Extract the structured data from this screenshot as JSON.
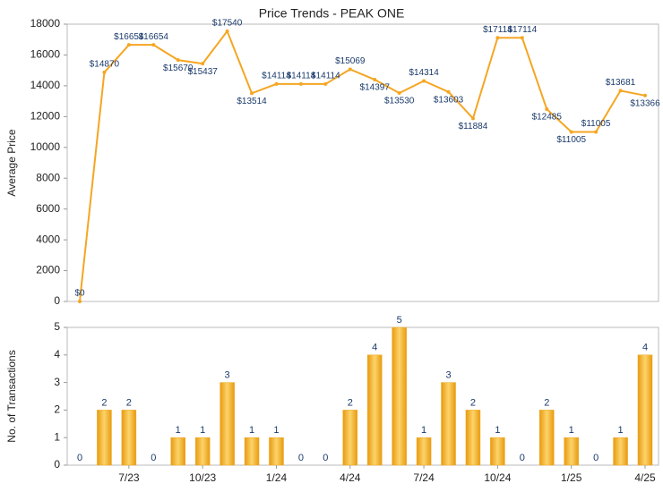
{
  "chart_data": [
    {
      "type": "line",
      "title": "Price Trends - PEAK ONE",
      "y_label": "Average Price",
      "color": "#f5a623",
      "values": [
        0,
        14870,
        16654,
        16654,
        15670,
        15437,
        17540,
        13514,
        14114,
        14114,
        14114,
        15069,
        14397,
        13530,
        14314,
        13603,
        11884,
        17114,
        17114,
        12485,
        11005,
        11005,
        13681,
        13366
      ],
      "value_labels": [
        "$0",
        "$14870",
        "$16654",
        "$16654",
        "$15670",
        "$15437",
        "$17540",
        "$13514",
        "$14114",
        "$14114",
        "$14114",
        "$15069",
        "$14397",
        "$13530",
        "$14314",
        "$13603",
        "$11884",
        "$17114",
        "$17114",
        "$12485",
        "$11005",
        "$11005",
        "$13681",
        "$13366"
      ],
      "ylim": [
        0,
        18000
      ],
      "yticks": [
        0,
        2000,
        4000,
        6000,
        8000,
        10000,
        12000,
        14000,
        16000,
        18000
      ]
    },
    {
      "type": "bar",
      "y_label": "No. of Transactions",
      "color": "#f0a81c",
      "categories": [
        null,
        null,
        "7/23",
        null,
        null,
        "10/23",
        null,
        null,
        "1/24",
        null,
        null,
        "4/24",
        null,
        null,
        "7/24",
        null,
        null,
        "10/24",
        null,
        null,
        "1/25",
        null,
        null,
        "4/25"
      ],
      "values": [
        0,
        2,
        2,
        0,
        1,
        1,
        3,
        1,
        1,
        0,
        0,
        2,
        4,
        5,
        1,
        3,
        2,
        1,
        0,
        2,
        1,
        0,
        1,
        4
      ],
      "ylim": [
        0,
        5
      ],
      "yticks": [
        0,
        1,
        2,
        3,
        4,
        5
      ]
    }
  ]
}
